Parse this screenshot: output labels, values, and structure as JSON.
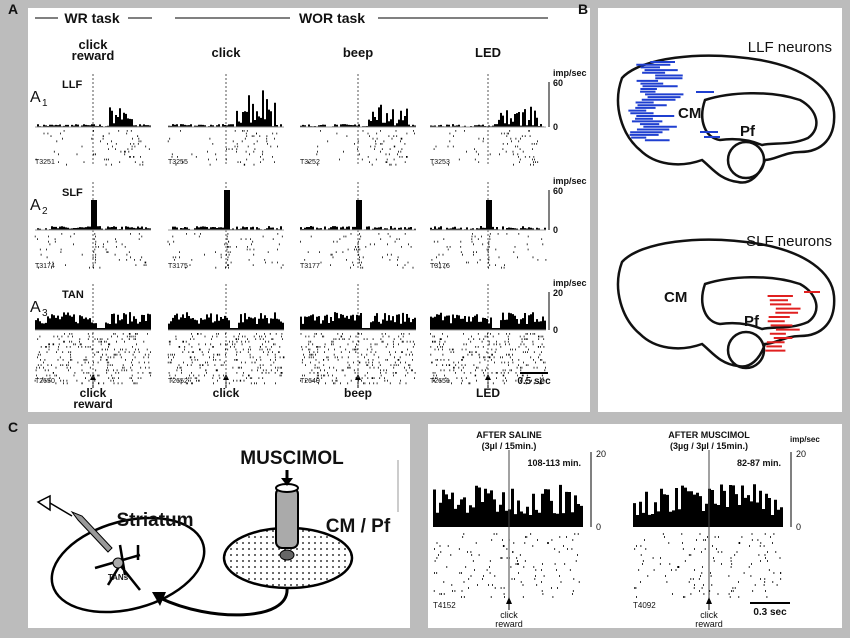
{
  "panel_a": {
    "label": "A",
    "wr_task": "WR task",
    "wor_task": "WOR task",
    "columns": [
      {
        "header": [
          "click",
          "reward"
        ],
        "footer": [
          "click",
          "reward"
        ]
      },
      {
        "header": [
          "click"
        ],
        "footer": [
          "click"
        ]
      },
      {
        "header": [
          "beep"
        ],
        "footer": [
          "beep"
        ]
      },
      {
        "header": [
          "LED"
        ],
        "footer": [
          "LED"
        ]
      }
    ],
    "rows": [
      {
        "letter": "A",
        "sub": "1",
        "name": "LLF",
        "unit": "imp/sec",
        "scale": [
          60,
          0
        ],
        "ids": [
          "T3251",
          "T3255",
          "T3252",
          "T3253"
        ]
      },
      {
        "letter": "A",
        "sub": "2",
        "name": "SLF",
        "unit": "imp/sec",
        "scale": [
          60,
          0
        ],
        "ids": [
          "T3174",
          "T3175",
          "T3177",
          "T3176"
        ]
      },
      {
        "letter": "A",
        "sub": "3",
        "name": "TAN",
        "unit": "imp/sec",
        "scale": [
          20,
          0
        ],
        "ids": [
          "T2650",
          "T2652",
          "T2649",
          "T2651"
        ]
      }
    ],
    "time_scale": "0.5 sec"
  },
  "panel_b": {
    "label": "B",
    "maps": [
      {
        "title": "LLF neurons",
        "cm": "CM",
        "pf": "Pf"
      },
      {
        "title": "SLF neurons",
        "cm": "CM",
        "pf": "Pf"
      }
    ]
  },
  "panel_c": {
    "label": "C",
    "diagram": {
      "muscimol": "MUSCIMOL",
      "striatum": "Striatum",
      "cm_pf": "CM / Pf",
      "tans": "TANs"
    },
    "recordings": [
      {
        "title": "AFTER SALINE",
        "dose": "(3µl / 15min.)",
        "window": "108-113 min.",
        "scale": [
          20,
          0
        ],
        "id": "T4152",
        "event": [
          "click",
          "reward"
        ]
      },
      {
        "title": "AFTER MUSCIMOL",
        "dose": "(3µg / 3µl / 15min.)",
        "window": "82-87 min.",
        "unit": "imp/sec",
        "scale": [
          20,
          0
        ],
        "id": "T4092",
        "event": [
          "click",
          "reward"
        ]
      }
    ],
    "time_scale": "0.3 sec"
  }
}
